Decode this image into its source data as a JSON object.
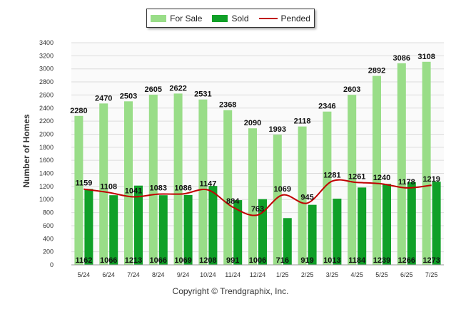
{
  "chart_data": {
    "type": "bar",
    "ylabel": "Number of Homes",
    "ylim": [
      0,
      3400
    ],
    "yticks": [
      0,
      200,
      400,
      600,
      800,
      1000,
      1200,
      1400,
      1600,
      1800,
      2000,
      2200,
      2400,
      2600,
      2800,
      3000,
      3200,
      3400
    ],
    "grid": true,
    "legend_position": "top-center",
    "categories": [
      "5/24",
      "6/24",
      "7/24",
      "8/24",
      "9/24",
      "10/24",
      "11/24",
      "12/24",
      "1/25",
      "2/25",
      "3/25",
      "4/25",
      "5/25",
      "6/25",
      "7/25"
    ],
    "series": [
      {
        "name": "For Sale",
        "type": "bar",
        "color": "#99dd88",
        "values": [
          2280,
          2470,
          2503,
          2605,
          2622,
          2531,
          2368,
          2090,
          1993,
          2118,
          2346,
          2603,
          2892,
          3086,
          3108
        ]
      },
      {
        "name": "Sold",
        "type": "bar",
        "color": "#10a028",
        "values": [
          1162,
          1066,
          1213,
          1066,
          1069,
          1208,
          991,
          1006,
          716,
          919,
          1013,
          1184,
          1239,
          1266,
          1273
        ]
      },
      {
        "name": "Pended",
        "type": "line",
        "color": "#c00000",
        "values": [
          1159,
          1108,
          1041,
          1083,
          1086,
          1147,
          884,
          763,
          1069,
          945,
          1281,
          1261,
          1240,
          1178,
          1219
        ]
      }
    ]
  },
  "copyright": "Copyright © Trendgraphix, Inc."
}
